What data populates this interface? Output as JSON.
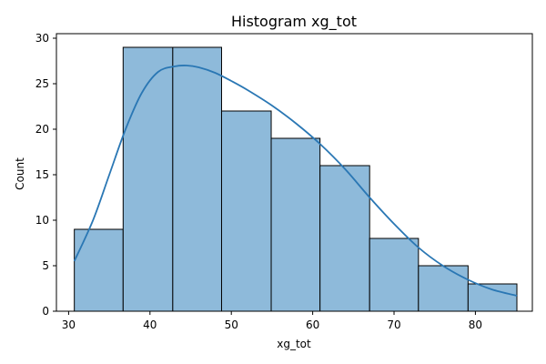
{
  "chart_data": {
    "type": "bar",
    "title": "Histogram xg_tot",
    "xlabel": "xg_tot",
    "ylabel": "Count",
    "xlim": [
      28.5,
      87
    ],
    "ylim": [
      0,
      30.5
    ],
    "xticks": [
      30,
      40,
      50,
      60,
      70,
      80
    ],
    "yticks": [
      0,
      5,
      10,
      15,
      20,
      25,
      30
    ],
    "bins": [
      {
        "x0": 30.7,
        "x1": 36.7,
        "count": 9
      },
      {
        "x0": 36.7,
        "x1": 42.8,
        "count": 29
      },
      {
        "x0": 42.8,
        "x1": 48.8,
        "count": 29
      },
      {
        "x0": 48.8,
        "x1": 54.9,
        "count": 22
      },
      {
        "x0": 54.9,
        "x1": 60.9,
        "count": 19
      },
      {
        "x0": 60.9,
        "x1": 67.0,
        "count": 16
      },
      {
        "x0": 67.0,
        "x1": 73.0,
        "count": 8
      },
      {
        "x0": 73.0,
        "x1": 79.1,
        "count": 5
      },
      {
        "x0": 79.1,
        "x1": 85.1,
        "count": 3
      }
    ],
    "kde": {
      "x": [
        30.7,
        33,
        35,
        37,
        39,
        41,
        43,
        44.5,
        46,
        48,
        50,
        52,
        55,
        58,
        61,
        64,
        67,
        70,
        73,
        76,
        79,
        82,
        85.1
      ],
      "y": [
        5.5,
        10,
        15,
        20,
        24,
        26.3,
        26.9,
        27.0,
        26.8,
        26.2,
        25.3,
        24.3,
        22.6,
        20.6,
        18.3,
        15.6,
        12.5,
        9.6,
        7.0,
        5.0,
        3.5,
        2.4,
        1.7
      ]
    },
    "colors": {
      "bar_fill": "#8ebada",
      "bar_edge": "#000000",
      "kde_line": "#2a77b4"
    },
    "grid": false,
    "legend": "none"
  }
}
